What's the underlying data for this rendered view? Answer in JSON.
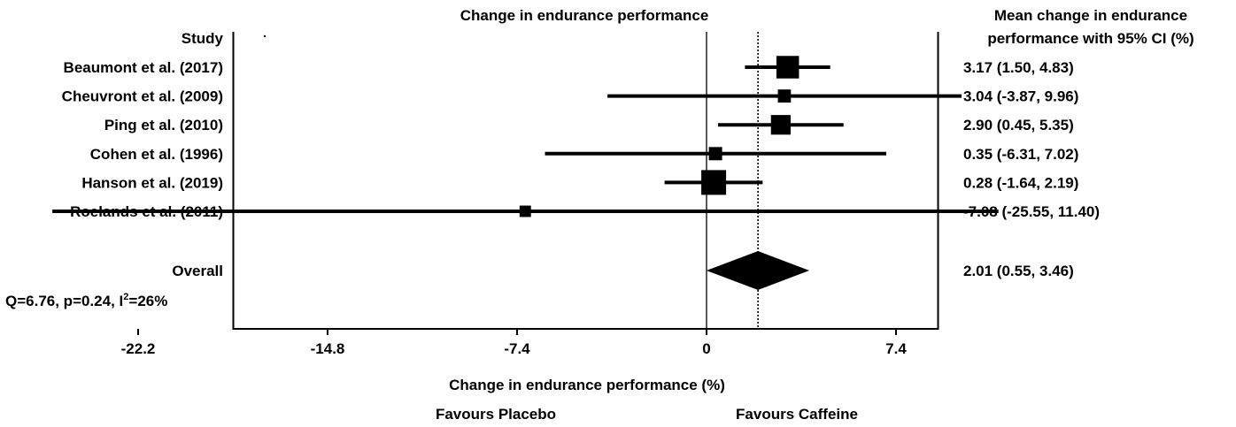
{
  "chart_data": {
    "type": "forest",
    "title": "Change in endurance performance",
    "xlabel": "Change in endurance performance (%)",
    "study_header": "Study",
    "estimate_header": [
      "Mean change in endurance",
      "performance with 95% CI (%)"
    ],
    "favours_left": "Favours Placebo",
    "favours_right": "Favours Caffeine",
    "xlim": [
      -27.5,
      11.6
    ],
    "xticks": [
      -22.2,
      -14.8,
      -7.4,
      0,
      7.4
    ],
    "xtick_labels": [
      "-22.2",
      "-14.8",
      "-7.4",
      "0",
      "7.4"
    ],
    "studies": [
      {
        "name": "Beaumont et al. (2017)",
        "mean": 3.17,
        "lower": 1.5,
        "upper": 4.83,
        "weight": 30.5,
        "ci_text": "3.17  (1.50,  4.83)"
      },
      {
        "name": "Cheuvront et al. (2009)",
        "mean": 3.04,
        "lower": -3.87,
        "upper": 9.96,
        "weight": 3.7,
        "ci_text": "3.04  (-3.87,  9.96)"
      },
      {
        "name": "Ping et al. (2010)",
        "mean": 2.9,
        "lower": 0.45,
        "upper": 5.35,
        "weight": 19.6,
        "ci_text": "2.90  (0.45,  5.35)"
      },
      {
        "name": "Cohen et al. (1996)",
        "mean": 0.35,
        "lower": -6.31,
        "upper": 7.02,
        "weight": 4.0,
        "ci_text": "0.35  (-6.31,  7.02)"
      },
      {
        "name": "Hanson et al. (2019)",
        "mean": 0.28,
        "lower": -1.64,
        "upper": 2.19,
        "weight": 40.5,
        "ci_text": "0.28  (-1.64,  2.19)"
      },
      {
        "name": "Roelands et al. (2011)",
        "mean": -7.08,
        "lower": -25.55,
        "upper": 11.4,
        "weight": 1.7,
        "ci_text": "-7.08  (-25.55, 11.40)"
      }
    ],
    "overall": {
      "name": "Overall",
      "mean": 2.01,
      "lower": 0.55,
      "upper": 3.46,
      "ci_text": "2.01  (0.55,  3.46)"
    },
    "heterogeneity": {
      "prefix": "Q=6.76, p=0.24, I",
      "sup": "2",
      "suffix": "=26%"
    }
  }
}
